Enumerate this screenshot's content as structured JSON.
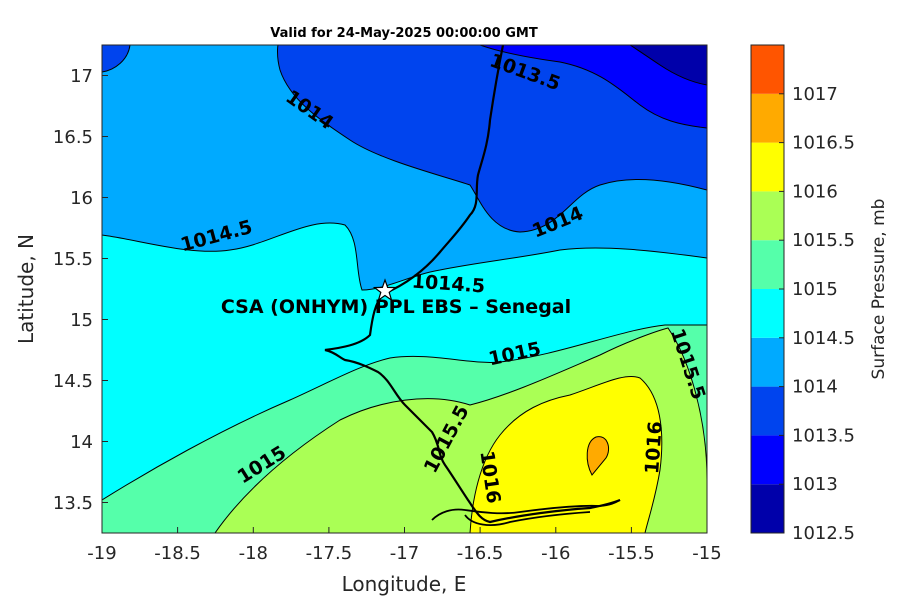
{
  "title": "Valid for 24-May-2025 00:00:00 GMT",
  "axes": {
    "xlabel": "Longitude, E",
    "ylabel": "Latitude, N",
    "xlim": [
      -19,
      -15
    ],
    "ylim": [
      13.25,
      17.25
    ],
    "xticks": [
      "-19",
      "-18.5",
      "-18",
      "-17.5",
      "-17",
      "-16.5",
      "-16",
      "-15.5",
      "-15"
    ],
    "yticks": [
      "13.5",
      "14",
      "14.5",
      "15",
      "15.5",
      "16",
      "16.5",
      "17"
    ]
  },
  "station": {
    "label": "CSA (ONHYM) PPL EBS  – Senegal",
    "lon": -17.13,
    "lat": 15.23,
    "marker": "star-icon"
  },
  "contour_labels": [
    {
      "text": "1013.5",
      "lon": -16.5,
      "lat": 17.0
    },
    {
      "text": "1014",
      "lon": -17.5,
      "lat": 16.6
    },
    {
      "text": "1014",
      "lon": -16.0,
      "lat": 15.8
    },
    {
      "text": "1014.5",
      "lon": -18.4,
      "lat": 15.7
    },
    {
      "text": "1014.5",
      "lon": -16.9,
      "lat": 15.3
    },
    {
      "text": "1015",
      "lon": -16.2,
      "lat": 14.75
    },
    {
      "text": "1015",
      "lon": -18.1,
      "lat": 13.9
    },
    {
      "text": "1015.5",
      "lon": -15.15,
      "lat": 14.6
    },
    {
      "text": "1015.5",
      "lon": -16.7,
      "lat": 13.95
    },
    {
      "text": "1016",
      "lon": -16.45,
      "lat": 13.7
    },
    {
      "text": "1016",
      "lon": -15.35,
      "lat": 13.95
    }
  ],
  "colorbar": {
    "label": "Surface Pressure, mb",
    "ticks": [
      "1012.5",
      "1013",
      "1013.5",
      "1014",
      "1014.5",
      "1015",
      "1015.5",
      "1016",
      "1016.5",
      "1017"
    ],
    "levels": [
      {
        "from": 1012.5,
        "to": 1013,
        "color": "#0000aa"
      },
      {
        "from": 1013,
        "to": 1013.5,
        "color": "#0000ff"
      },
      {
        "from": 1013.5,
        "to": 1014,
        "color": "#0044ee"
      },
      {
        "from": 1014,
        "to": 1014.5,
        "color": "#00aaff"
      },
      {
        "from": 1014.5,
        "to": 1015,
        "color": "#00ffff"
      },
      {
        "from": 1015,
        "to": 1015.5,
        "color": "#55ffaa"
      },
      {
        "from": 1015.5,
        "to": 1016,
        "color": "#aaff55"
      },
      {
        "from": 1016,
        "to": 1016.5,
        "color": "#ffff00"
      },
      {
        "from": 1016.5,
        "to": 1017,
        "color": "#ffaa00"
      },
      {
        "from": 1017,
        "to": 1017.5,
        "color": "#ff5500"
      }
    ]
  },
  "chart_data": {
    "type": "heatmap",
    "title": "Valid for 24-May-2025 00:00:00 GMT",
    "xlabel": "Longitude, E",
    "ylabel": "Latitude, N",
    "xlim": [
      -19,
      -15
    ],
    "ylim": [
      13.25,
      17.25
    ],
    "clim": [
      1012.5,
      1017.5
    ],
    "colorbar_label": "Surface Pressure, mb",
    "contour_levels": [
      1013.5,
      1014,
      1014.5,
      1015,
      1015.5,
      1016
    ],
    "max_region": {
      "value_range": [
        1016.5,
        1017
      ],
      "lon": -15.75,
      "lat": 13.9
    },
    "min_region": {
      "value_range": [
        1012.5,
        1013
      ],
      "lon": -15.1,
      "lat": 17.1
    }
  }
}
